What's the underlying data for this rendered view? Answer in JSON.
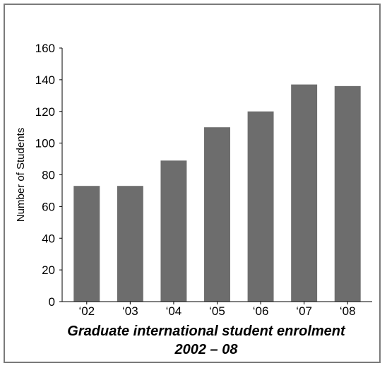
{
  "chart_data": {
    "type": "bar",
    "title_line1": "Graduate international student enrolment",
    "title_line2": "2002 – 08",
    "xlabel": "",
    "ylabel": "Number of Students",
    "categories": [
      "‘02",
      "‘03",
      "‘04",
      "‘05",
      "‘06",
      "‘07",
      "‘08"
    ],
    "values": [
      73,
      73,
      89,
      110,
      120,
      137,
      136
    ],
    "ylim": [
      0,
      160
    ],
    "yticks": [
      0,
      20,
      40,
      60,
      80,
      100,
      120,
      140,
      160
    ],
    "grid": false,
    "bar_color": "#6d6d6d",
    "frame_color": "#7a7a7a"
  }
}
